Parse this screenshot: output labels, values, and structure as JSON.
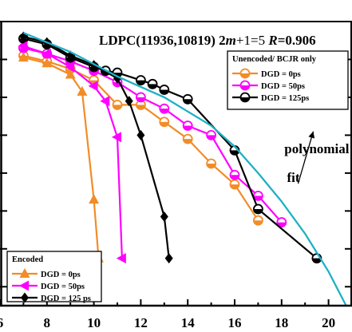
{
  "chart_data": {
    "type": "line",
    "title": "LDPC(11936,10819) 2m+1=5 R=0.906",
    "title_parts": [
      "LDPC(11936,10819) 2",
      "m",
      "+1=5 ",
      "R",
      "=0.906"
    ],
    "xlabel": "",
    "ylabel": "",
    "x_ticks": [
      6,
      8,
      10,
      12,
      14,
      16,
      18,
      20
    ],
    "xlim": [
      6,
      21
    ],
    "ylim": [
      -7.5,
      0
    ],
    "y_scale": "log",
    "grid": false,
    "legends": [
      {
        "position": "top-right",
        "title": "Unencoded/ BCJR only",
        "entries": [
          {
            "series": 0,
            "label": "DGD = 0ps"
          },
          {
            "series": 1,
            "label": "DGD = 50ps"
          },
          {
            "series": 2,
            "label": "DGD = 125ps"
          }
        ]
      },
      {
        "position": "bottom-left",
        "title": "Encoded",
        "entries": [
          {
            "series": 3,
            "label": "DGD = 0ps"
          },
          {
            "series": 4,
            "label": "DGD = 50ps"
          },
          {
            "series": 5,
            "label": "DGD = 125 ps"
          }
        ]
      }
    ],
    "series": [
      {
        "marker": "circle-half",
        "color": "#f28c28",
        "x": [
          7,
          8,
          9,
          10,
          11,
          12,
          13,
          14,
          15,
          16,
          17
        ],
        "y": [
          -0.9,
          -1.05,
          -1.25,
          -1.55,
          -2.2,
          -2.2,
          -2.65,
          -3.1,
          -3.75,
          -4.3,
          -5.25
        ]
      },
      {
        "marker": "circle-half",
        "color": "#ff00ff",
        "x": [
          7,
          8,
          9,
          10,
          11,
          12,
          13,
          14,
          15,
          16,
          17,
          18
        ],
        "y": [
          -0.7,
          -0.85,
          -1.05,
          -1.3,
          -1.6,
          -2.0,
          -2.3,
          -2.75,
          -3.0,
          -4.05,
          -4.6,
          -5.3
        ]
      },
      {
        "marker": "circle-half",
        "color": "#000000",
        "x": [
          7,
          8,
          9,
          10,
          10.5,
          11,
          12,
          12.5,
          13,
          14,
          16,
          17,
          19.5
        ],
        "y": [
          -0.45,
          -0.6,
          -0.95,
          -1.2,
          -1.3,
          -1.35,
          -1.55,
          -1.65,
          -1.8,
          -2.05,
          -3.4,
          -4.95,
          -6.25
        ]
      },
      {
        "marker": "triangle-up",
        "color": "#f28c28",
        "x": [
          7,
          8,
          9,
          9.5,
          10,
          10.2
        ],
        "y": [
          -0.95,
          -1.1,
          -1.4,
          -1.85,
          -4.7,
          -6.25
        ]
      },
      {
        "marker": "triangle-left",
        "color": "#ff00ff",
        "x": [
          7,
          8,
          9,
          10,
          10.5,
          11,
          11.2
        ],
        "y": [
          -0.65,
          -0.85,
          -1.2,
          -1.7,
          -2.1,
          -3.05,
          -6.25
        ]
      },
      {
        "marker": "diamond",
        "color": "#000000",
        "x": [
          7,
          8,
          9,
          10,
          11,
          11.5,
          12,
          13,
          13.2
        ],
        "y": [
          -0.4,
          -0.55,
          -0.9,
          -1.15,
          -1.5,
          -2.1,
          -3.0,
          -5.15,
          -6.25
        ]
      },
      {
        "marker": "none",
        "color": "#1fb1c4",
        "x": [
          7,
          9,
          11,
          13,
          15,
          16,
          17,
          18,
          19,
          20,
          21
        ],
        "y": [
          -0.3,
          -0.8,
          -1.45,
          -2.0,
          -2.75,
          -3.3,
          -4.0,
          -4.75,
          -5.6,
          -6.6,
          -7.8
        ]
      }
    ],
    "annotations": [
      {
        "text": "polynomial",
        "x": 19.5,
        "y": -3.35
      },
      {
        "text": "fit",
        "x": 18.5,
        "y": -3.9,
        "arrow_to": [
          19.35,
          -2.9
        ]
      }
    ]
  }
}
